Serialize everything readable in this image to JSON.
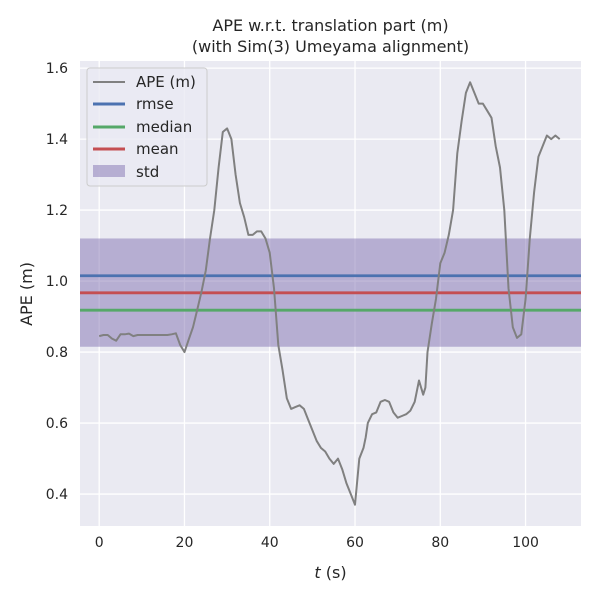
{
  "chart_data": {
    "type": "line",
    "title_line1": "APE w.r.t. translation part (m)",
    "title_line2": "(with Sim(3) Umeyama alignment)",
    "xlabel_var": "t",
    "xlabel_unit": " (s)",
    "ylabel": "APE (m)",
    "xlim": [
      -4.5,
      113
    ],
    "ylim": [
      0.31,
      1.62
    ],
    "x_ticks": [
      0,
      20,
      40,
      60,
      80,
      100
    ],
    "y_ticks": [
      0.4,
      0.6,
      0.8,
      1.0,
      1.2,
      1.4,
      1.6
    ],
    "x_tick_labels": [
      "0",
      "20",
      "40",
      "60",
      "80",
      "100"
    ],
    "y_tick_labels": [
      "0.4",
      "0.6",
      "0.8",
      "1.0",
      "1.2",
      "1.4",
      "1.6"
    ],
    "grid": true,
    "legend_position": "upper left",
    "colors": {
      "plot_bg": "#eaeaf2",
      "grid": "#ffffff",
      "ape": "#808080",
      "rmse": "#4c72b0",
      "median": "#55a868",
      "mean": "#c44e52",
      "std": "#8172b2"
    },
    "stats": {
      "rmse": 1.015,
      "median": 0.918,
      "mean": 0.967,
      "std_low": 0.815,
      "std_high": 1.12
    },
    "series": [
      {
        "name": "APE (m)",
        "x": [
          0,
          1,
          2,
          3,
          4,
          5,
          6,
          7,
          8,
          9,
          10,
          12,
          14,
          16,
          17,
          18,
          19,
          20,
          21,
          22,
          23,
          24,
          25,
          26,
          27,
          28,
          29,
          30,
          31,
          32,
          33,
          34,
          35,
          36,
          37,
          38,
          39,
          40,
          41,
          42,
          43,
          44,
          45,
          46,
          47,
          48,
          49,
          50,
          51,
          52,
          53,
          54,
          55,
          56,
          57,
          58,
          59,
          60,
          61,
          62,
          62.5,
          63,
          64,
          65,
          66,
          67,
          68,
          69,
          70,
          71,
          72,
          73,
          74,
          75,
          76,
          76.5,
          77,
          78,
          79,
          80,
          81,
          82,
          83,
          84,
          85,
          86,
          87,
          88,
          89,
          90,
          91,
          92,
          93,
          94,
          95,
          96,
          97,
          98,
          99,
          100,
          101,
          102,
          103,
          104,
          105,
          106,
          107,
          108
        ],
        "values": [
          0.845,
          0.848,
          0.848,
          0.838,
          0.832,
          0.85,
          0.85,
          0.852,
          0.845,
          0.848,
          0.848,
          0.848,
          0.848,
          0.848,
          0.85,
          0.853,
          0.82,
          0.8,
          0.835,
          0.87,
          0.92,
          0.97,
          1.03,
          1.12,
          1.2,
          1.32,
          1.42,
          1.43,
          1.4,
          1.3,
          1.22,
          1.18,
          1.13,
          1.13,
          1.14,
          1.14,
          1.12,
          1.08,
          0.98,
          0.82,
          0.75,
          0.67,
          0.64,
          0.645,
          0.65,
          0.64,
          0.61,
          0.58,
          0.55,
          0.53,
          0.52,
          0.5,
          0.485,
          0.5,
          0.47,
          0.43,
          0.4,
          0.37,
          0.5,
          0.53,
          0.56,
          0.6,
          0.625,
          0.63,
          0.66,
          0.665,
          0.66,
          0.63,
          0.615,
          0.62,
          0.625,
          0.635,
          0.66,
          0.72,
          0.68,
          0.7,
          0.8,
          0.88,
          0.95,
          1.05,
          1.08,
          1.13,
          1.2,
          1.36,
          1.45,
          1.53,
          1.56,
          1.53,
          1.5,
          1.5,
          1.48,
          1.46,
          1.38,
          1.32,
          1.2,
          0.98,
          0.87,
          0.84,
          0.85,
          0.95,
          1.12,
          1.25,
          1.35,
          1.38,
          1.41,
          1.4,
          1.41,
          1.4
        ]
      },
      {
        "name": "rmse"
      },
      {
        "name": "median"
      },
      {
        "name": "mean"
      },
      {
        "name": "std"
      }
    ]
  }
}
